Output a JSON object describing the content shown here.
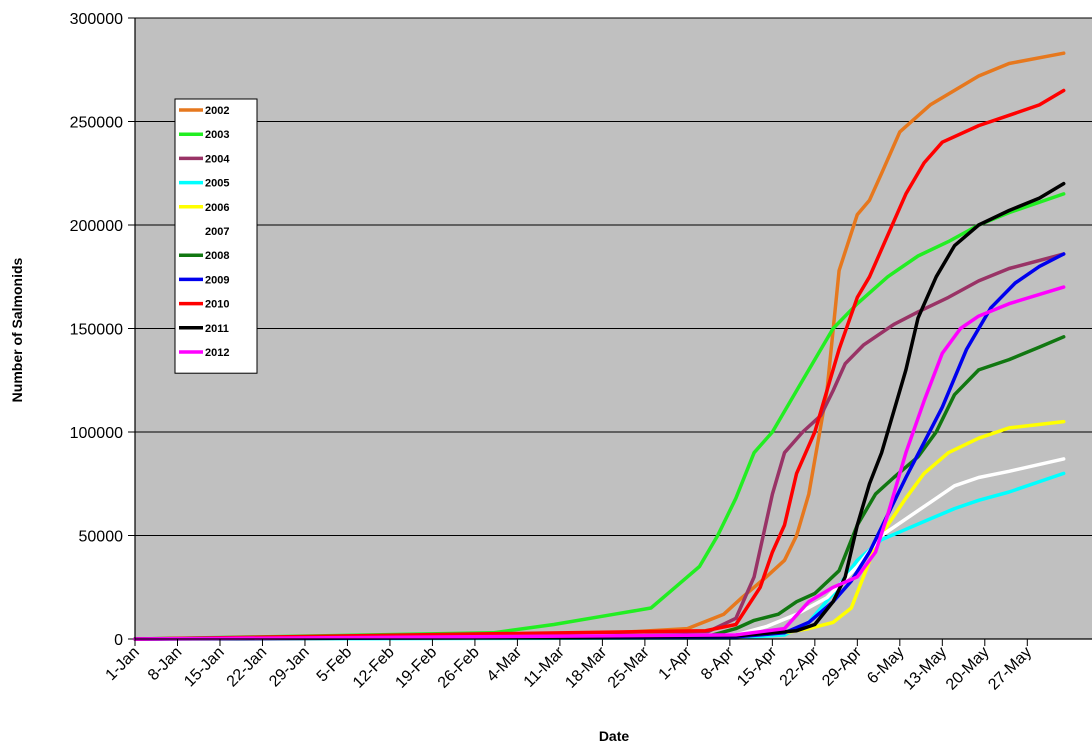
{
  "chart_data": {
    "type": "line",
    "title": "",
    "xlabel": "Date",
    "ylabel": "Number of Salmonids",
    "ylim": [
      0,
      300000
    ],
    "yticks": [
      0,
      50000,
      100000,
      150000,
      200000,
      250000,
      300000
    ],
    "xticks": [
      "1-Jan",
      "8-Jan",
      "15-Jan",
      "22-Jan",
      "29-Jan",
      "5-Feb",
      "12-Feb",
      "19-Feb",
      "26-Feb",
      "4-Mar",
      "11-Mar",
      "18-Mar",
      "25-Mar",
      "1-Apr",
      "8-Apr",
      "15-Apr",
      "22-Apr",
      "29-Apr",
      "6-May",
      "13-May",
      "20-May",
      "27-May"
    ],
    "x_unit": "day of year (1 = 1-Jan)",
    "xlim": [
      1,
      154
    ],
    "grid": "horizontal",
    "plot_background": "#c0c0c0",
    "legend_position": "top-left",
    "series": [
      {
        "name": "2002",
        "color": "#e6781e",
        "points": [
          [
            1,
            0
          ],
          [
            60,
            1500
          ],
          [
            80,
            3000
          ],
          [
            92,
            5000
          ],
          [
            98,
            12000
          ],
          [
            101,
            20000
          ],
          [
            105,
            30000
          ],
          [
            108,
            38000
          ],
          [
            110,
            50000
          ],
          [
            112,
            70000
          ],
          [
            115,
            120000
          ],
          [
            117,
            178000
          ],
          [
            120,
            205000
          ],
          [
            122,
            212000
          ],
          [
            124,
            225000
          ],
          [
            127,
            245000
          ],
          [
            132,
            258000
          ],
          [
            140,
            272000
          ],
          [
            145,
            278000
          ],
          [
            154,
            283000
          ]
        ]
      },
      {
        "name": "2003",
        "color": "#22ee22",
        "points": [
          [
            1,
            0
          ],
          [
            60,
            3000
          ],
          [
            70,
            7000
          ],
          [
            80,
            12000
          ],
          [
            86,
            15000
          ],
          [
            90,
            25000
          ],
          [
            94,
            35000
          ],
          [
            97,
            50000
          ],
          [
            100,
            68000
          ],
          [
            103,
            90000
          ],
          [
            106,
            100000
          ],
          [
            110,
            120000
          ],
          [
            113,
            135000
          ],
          [
            116,
            150000
          ],
          [
            120,
            162000
          ],
          [
            125,
            175000
          ],
          [
            130,
            185000
          ],
          [
            135,
            192000
          ],
          [
            140,
            200000
          ],
          [
            145,
            206000
          ],
          [
            154,
            215000
          ]
        ]
      },
      {
        "name": "2004",
        "color": "#993366",
        "points": [
          [
            1,
            0
          ],
          [
            85,
            2000
          ],
          [
            95,
            3000
          ],
          [
            100,
            10000
          ],
          [
            103,
            30000
          ],
          [
            106,
            70000
          ],
          [
            108,
            90000
          ],
          [
            111,
            100000
          ],
          [
            114,
            108000
          ],
          [
            116,
            120000
          ],
          [
            118,
            133000
          ],
          [
            121,
            142000
          ],
          [
            126,
            152000
          ],
          [
            130,
            158000
          ],
          [
            135,
            165000
          ],
          [
            140,
            173000
          ],
          [
            145,
            179000
          ],
          [
            154,
            186000
          ]
        ]
      },
      {
        "name": "2005",
        "color": "#00ffff",
        "points": [
          [
            1,
            0
          ],
          [
            100,
            500
          ],
          [
            108,
            2000
          ],
          [
            112,
            8000
          ],
          [
            116,
            22000
          ],
          [
            120,
            38000
          ],
          [
            124,
            48000
          ],
          [
            128,
            53000
          ],
          [
            132,
            58000
          ],
          [
            136,
            63000
          ],
          [
            140,
            67000
          ],
          [
            145,
            71000
          ],
          [
            154,
            80000
          ]
        ]
      },
      {
        "name": "2006",
        "color": "#ffff00",
        "points": [
          [
            1,
            0
          ],
          [
            100,
            1000
          ],
          [
            108,
            3000
          ],
          [
            112,
            5000
          ],
          [
            116,
            8000
          ],
          [
            119,
            15000
          ],
          [
            121,
            30000
          ],
          [
            123,
            45000
          ],
          [
            125,
            55000
          ],
          [
            128,
            68000
          ],
          [
            131,
            80000
          ],
          [
            135,
            90000
          ],
          [
            140,
            97000
          ],
          [
            145,
            102000
          ],
          [
            154,
            105000
          ]
        ]
      },
      {
        "name": "2007",
        "color": "#ffffff",
        "points": [
          [
            1,
            0
          ],
          [
            100,
            2000
          ],
          [
            105,
            6000
          ],
          [
            110,
            12000
          ],
          [
            115,
            20000
          ],
          [
            120,
            35000
          ],
          [
            124,
            50000
          ],
          [
            128,
            58000
          ],
          [
            132,
            66000
          ],
          [
            136,
            74000
          ],
          [
            140,
            78000
          ],
          [
            145,
            81000
          ],
          [
            154,
            87000
          ]
        ]
      },
      {
        "name": "2008",
        "color": "#117711",
        "points": [
          [
            1,
            0
          ],
          [
            95,
            1000
          ],
          [
            100,
            5000
          ],
          [
            103,
            9000
          ],
          [
            107,
            12000
          ],
          [
            110,
            18000
          ],
          [
            113,
            22000
          ],
          [
            117,
            33000
          ],
          [
            120,
            55000
          ],
          [
            123,
            70000
          ],
          [
            126,
            78000
          ],
          [
            130,
            88000
          ],
          [
            133,
            100000
          ],
          [
            136,
            118000
          ],
          [
            140,
            130000
          ],
          [
            145,
            135000
          ],
          [
            150,
            141000
          ],
          [
            154,
            146000
          ]
        ]
      },
      {
        "name": "2009",
        "color": "#0000ee",
        "points": [
          [
            1,
            0
          ],
          [
            100,
            1000
          ],
          [
            108,
            3000
          ],
          [
            112,
            8000
          ],
          [
            116,
            18000
          ],
          [
            119,
            28000
          ],
          [
            122,
            42000
          ],
          [
            125,
            60000
          ],
          [
            128,
            78000
          ],
          [
            131,
            95000
          ],
          [
            134,
            112000
          ],
          [
            138,
            140000
          ],
          [
            142,
            160000
          ],
          [
            146,
            172000
          ],
          [
            150,
            180000
          ],
          [
            154,
            186000
          ]
        ]
      },
      {
        "name": "2010",
        "color": "#ff0000",
        "points": [
          [
            1,
            0
          ],
          [
            95,
            4000
          ],
          [
            100,
            7000
          ],
          [
            104,
            25000
          ],
          [
            106,
            42000
          ],
          [
            108,
            55000
          ],
          [
            110,
            80000
          ],
          [
            113,
            100000
          ],
          [
            117,
            140000
          ],
          [
            120,
            165000
          ],
          [
            122,
            175000
          ],
          [
            125,
            195000
          ],
          [
            128,
            215000
          ],
          [
            131,
            230000
          ],
          [
            134,
            240000
          ],
          [
            140,
            248000
          ],
          [
            145,
            253000
          ],
          [
            150,
            258000
          ],
          [
            154,
            265000
          ]
        ]
      },
      {
        "name": "2011",
        "color": "#000000",
        "points": [
          [
            1,
            0
          ],
          [
            100,
            1500
          ],
          [
            110,
            4000
          ],
          [
            113,
            7000
          ],
          [
            116,
            18000
          ],
          [
            118,
            30000
          ],
          [
            120,
            55000
          ],
          [
            122,
            75000
          ],
          [
            124,
            90000
          ],
          [
            126,
            110000
          ],
          [
            128,
            130000
          ],
          [
            130,
            155000
          ],
          [
            133,
            175000
          ],
          [
            136,
            190000
          ],
          [
            140,
            200000
          ],
          [
            145,
            207000
          ],
          [
            150,
            213000
          ],
          [
            154,
            220000
          ]
        ]
      },
      {
        "name": "2012",
        "color": "#ff00ff",
        "points": [
          [
            1,
            0
          ],
          [
            100,
            2000
          ],
          [
            108,
            5000
          ],
          [
            112,
            18000
          ],
          [
            116,
            25000
          ],
          [
            120,
            30000
          ],
          [
            123,
            42000
          ],
          [
            125,
            60000
          ],
          [
            128,
            90000
          ],
          [
            131,
            115000
          ],
          [
            134,
            138000
          ],
          [
            137,
            150000
          ],
          [
            140,
            156000
          ],
          [
            145,
            162000
          ],
          [
            154,
            170000
          ]
        ]
      }
    ]
  }
}
